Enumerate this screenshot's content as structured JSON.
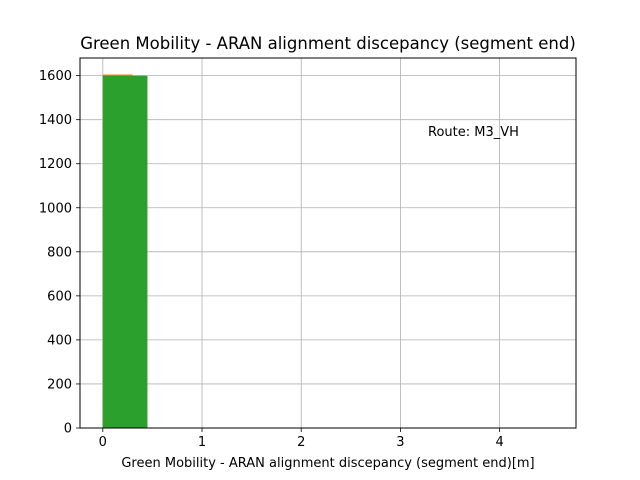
{
  "chart_data": {
    "type": "bar",
    "title": "Green Mobility - ARAN alignment discepancy (segment end)",
    "xlabel": "Green Mobility - ARAN alignment discepancy (segment end)[m]",
    "ylabel": "",
    "xlim": [
      -0.23,
      4.77
    ],
    "ylim": [
      0,
      1680
    ],
    "xticks": [
      0,
      1,
      2,
      3,
      4
    ],
    "yticks": [
      0,
      200,
      400,
      600,
      800,
      1000,
      1200,
      1400,
      1600
    ],
    "grid": true,
    "annotation": "Route: M3_VH",
    "series": [
      {
        "color": "#1f77b4",
        "bins": [
          {
            "x0": 0.0,
            "x1": 0.3,
            "count": 1600
          }
        ]
      },
      {
        "color": "#ff7f0e",
        "bins": [
          {
            "x0": 0.0,
            "x1": 0.3,
            "count": 1605
          }
        ]
      },
      {
        "color": "#2ca02c",
        "bins": [
          {
            "x0": 0.0,
            "x1": 0.45,
            "count": 1600
          }
        ]
      }
    ]
  }
}
